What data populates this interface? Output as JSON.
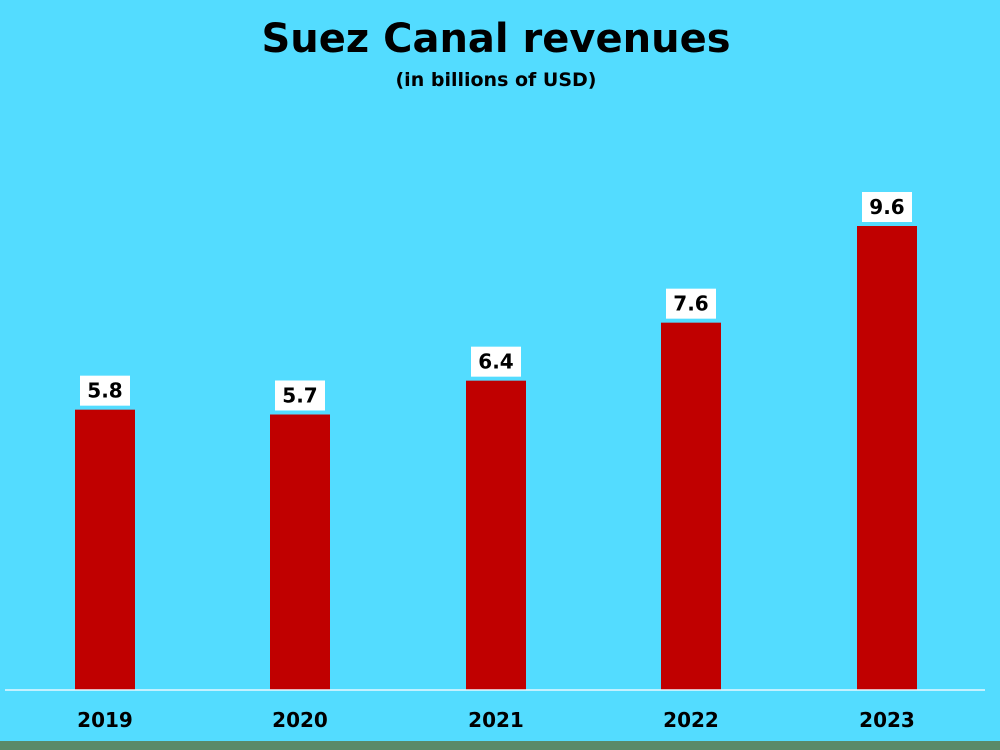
{
  "chart_data": {
    "type": "bar",
    "title": "Suez Canal revenues",
    "subtitle": "(in billions of USD)",
    "categories": [
      "2019",
      "2020",
      "2021",
      "2022",
      "2023"
    ],
    "values": [
      5.8,
      5.7,
      6.4,
      7.6,
      9.6
    ],
    "data_labels": [
      "5.8",
      "5.7",
      "6.4",
      "7.6",
      "9.6"
    ],
    "xlabel": "",
    "ylabel": "",
    "ylim": [
      0,
      9.6
    ],
    "grid": false,
    "legend": "none",
    "colors": {
      "background": "#53dcff",
      "bar": "#c00000",
      "label_box": "#ffffff",
      "text": "#000000",
      "baseline": "#e8f8ff",
      "bottom_band": "#5a8a68"
    }
  }
}
